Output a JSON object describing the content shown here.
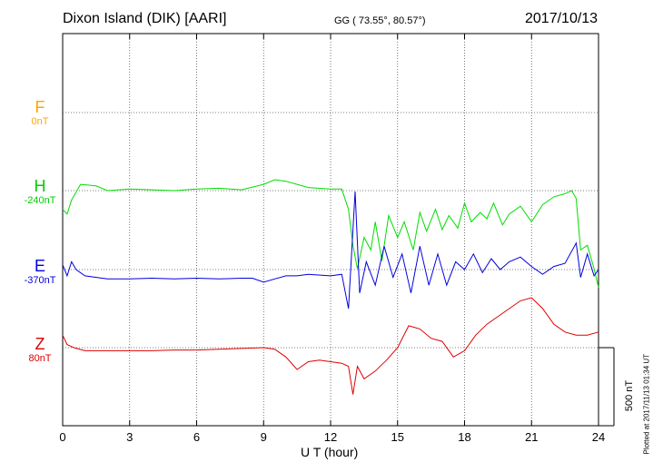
{
  "header": {
    "title": "Dixon Island (DIK)  [AARI]",
    "coords": "GG ( 73.55°,  80.57°)",
    "date": "2017/10/13"
  },
  "xaxis": {
    "label": "U T (hour)",
    "ticks": [
      "0",
      "3",
      "6",
      "9",
      "12",
      "15",
      "18",
      "21",
      "24"
    ]
  },
  "scale_label": "500 nT",
  "plotted": "Plotted at 2017/11/13 01:34 UT",
  "colors": {
    "F": "#ffa500",
    "H": "#00dd00",
    "E": "#0000dd",
    "Z": "#dd0000"
  },
  "components": [
    {
      "name": "F",
      "base": "0nT"
    },
    {
      "name": "H",
      "base": "-240nT"
    },
    {
      "name": "E",
      "base": "-370nT"
    },
    {
      "name": "Z",
      "base": "80nT"
    }
  ],
  "chart_data": {
    "type": "line",
    "title": "Dixon Island (DIK)  [AARI]",
    "xlabel": "U T (hour)",
    "xlim": [
      0,
      24
    ],
    "scale_bar_nT": 500,
    "series": [
      {
        "name": "H",
        "base": "-240nT",
        "points": [
          [
            0,
            -120
          ],
          [
            0.2,
            -150
          ],
          [
            0.4,
            -60
          ],
          [
            0.8,
            40
          ],
          [
            1.5,
            30
          ],
          [
            2,
            0
          ],
          [
            3,
            10
          ],
          [
            4,
            5
          ],
          [
            5,
            0
          ],
          [
            6,
            10
          ],
          [
            7,
            15
          ],
          [
            8,
            5
          ],
          [
            9,
            40
          ],
          [
            9.5,
            70
          ],
          [
            10,
            60
          ],
          [
            10.5,
            40
          ],
          [
            11,
            20
          ],
          [
            12,
            10
          ],
          [
            12.5,
            10
          ],
          [
            12.8,
            -120
          ],
          [
            13,
            -350
          ],
          [
            13.2,
            -500
          ],
          [
            13.5,
            -300
          ],
          [
            13.8,
            -380
          ],
          [
            14,
            -200
          ],
          [
            14.3,
            -450
          ],
          [
            14.6,
            -160
          ],
          [
            15,
            -300
          ],
          [
            15.3,
            -200
          ],
          [
            15.7,
            -380
          ],
          [
            16,
            -140
          ],
          [
            16.3,
            -260
          ],
          [
            16.7,
            -120
          ],
          [
            17,
            -250
          ],
          [
            17.3,
            -160
          ],
          [
            17.7,
            -240
          ],
          [
            18,
            -80
          ],
          [
            18.3,
            -200
          ],
          [
            18.7,
            -140
          ],
          [
            19,
            -180
          ],
          [
            19.3,
            -80
          ],
          [
            19.7,
            -220
          ],
          [
            20,
            -150
          ],
          [
            20.5,
            -100
          ],
          [
            21,
            -200
          ],
          [
            21.5,
            -90
          ],
          [
            22,
            -40
          ],
          [
            22.5,
            -20
          ],
          [
            22.8,
            0
          ],
          [
            23,
            -50
          ],
          [
            23.2,
            -380
          ],
          [
            23.5,
            -350
          ],
          [
            23.8,
            -500
          ],
          [
            24,
            -620
          ]
        ]
      },
      {
        "name": "E",
        "base": "-370nT",
        "points": [
          [
            0,
            30
          ],
          [
            0.2,
            -40
          ],
          [
            0.4,
            50
          ],
          [
            0.6,
            0
          ],
          [
            1,
            -40
          ],
          [
            2,
            -60
          ],
          [
            3,
            -60
          ],
          [
            4,
            -55
          ],
          [
            5,
            -60
          ],
          [
            6,
            -55
          ],
          [
            7,
            -60
          ],
          [
            8,
            -55
          ],
          [
            8.5,
            -55
          ],
          [
            9,
            -80
          ],
          [
            9.5,
            -60
          ],
          [
            10,
            -40
          ],
          [
            10.5,
            -40
          ],
          [
            11,
            -30
          ],
          [
            12,
            -40
          ],
          [
            12.5,
            -30
          ],
          [
            12.8,
            -250
          ],
          [
            13.1,
            500
          ],
          [
            13.3,
            -150
          ],
          [
            13.6,
            50
          ],
          [
            14,
            -100
          ],
          [
            14.4,
            150
          ],
          [
            14.8,
            -50
          ],
          [
            15.2,
            100
          ],
          [
            15.6,
            -150
          ],
          [
            16,
            150
          ],
          [
            16.4,
            -100
          ],
          [
            16.8,
            100
          ],
          [
            17.2,
            -100
          ],
          [
            17.6,
            50
          ],
          [
            18,
            0
          ],
          [
            18.4,
            100
          ],
          [
            18.8,
            -20
          ],
          [
            19.2,
            70
          ],
          [
            19.6,
            0
          ],
          [
            20,
            50
          ],
          [
            20.5,
            80
          ],
          [
            21,
            20
          ],
          [
            21.5,
            -30
          ],
          [
            22,
            20
          ],
          [
            22.5,
            40
          ],
          [
            23,
            170
          ],
          [
            23.2,
            -50
          ],
          [
            23.5,
            100
          ],
          [
            23.8,
            -40
          ],
          [
            24,
            0
          ]
        ]
      },
      {
        "name": "Z",
        "base": "80nT",
        "points": [
          [
            0,
            80
          ],
          [
            0.2,
            20
          ],
          [
            0.5,
            0
          ],
          [
            1,
            -20
          ],
          [
            2,
            -20
          ],
          [
            3,
            -20
          ],
          [
            4,
            -20
          ],
          [
            5,
            -15
          ],
          [
            6,
            -15
          ],
          [
            7,
            -10
          ],
          [
            8,
            -5
          ],
          [
            9,
            0
          ],
          [
            9.5,
            -10
          ],
          [
            10,
            -60
          ],
          [
            10.5,
            -140
          ],
          [
            11,
            -90
          ],
          [
            11.5,
            -80
          ],
          [
            12,
            -90
          ],
          [
            12.5,
            -100
          ],
          [
            12.8,
            -120
          ],
          [
            13,
            -300
          ],
          [
            13.2,
            -120
          ],
          [
            13.5,
            -200
          ],
          [
            14,
            -150
          ],
          [
            14.5,
            -80
          ],
          [
            15,
            0
          ],
          [
            15.5,
            140
          ],
          [
            16,
            120
          ],
          [
            16.5,
            60
          ],
          [
            17,
            40
          ],
          [
            17.5,
            -60
          ],
          [
            18,
            -20
          ],
          [
            18.5,
            80
          ],
          [
            19,
            150
          ],
          [
            19.5,
            200
          ],
          [
            20,
            250
          ],
          [
            20.5,
            300
          ],
          [
            21,
            320
          ],
          [
            21.5,
            250
          ],
          [
            22,
            150
          ],
          [
            22.5,
            100
          ],
          [
            23,
            80
          ],
          [
            23.5,
            80
          ],
          [
            24,
            100
          ]
        ]
      }
    ]
  }
}
